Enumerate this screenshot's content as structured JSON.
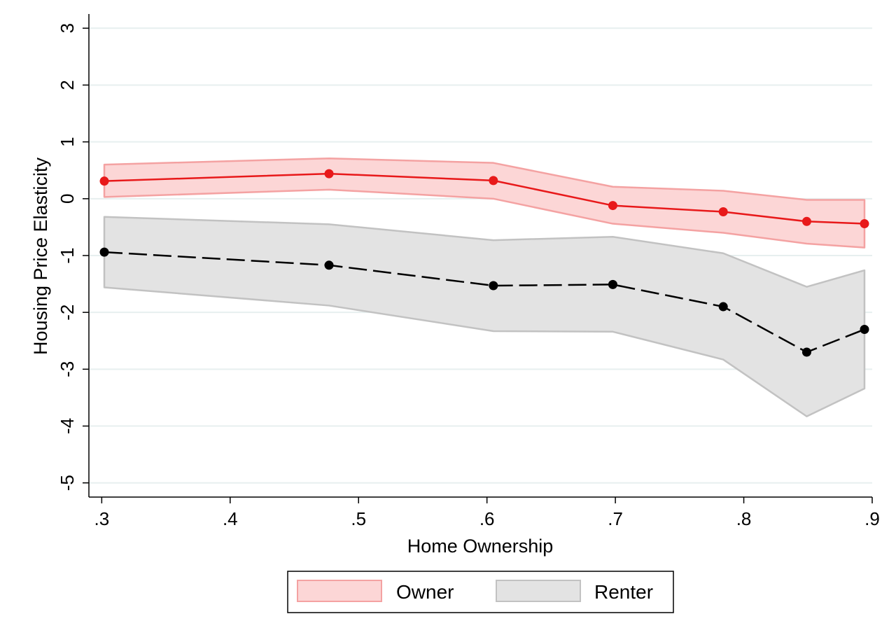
{
  "chart_data": {
    "type": "line",
    "xlabel": "Home Ownership",
    "ylabel": "Housing Price Elasticity",
    "xlim": [
      0.29,
      0.9
    ],
    "ylim": [
      -5.25,
      3.25
    ],
    "x_ticks": [
      0.3,
      0.4,
      0.5,
      0.6,
      0.7,
      0.8,
      0.9
    ],
    "x_tick_labels": [
      ".3",
      ".4",
      ".5",
      ".6",
      ".7",
      ".8",
      ".9"
    ],
    "y_ticks": [
      3,
      2,
      1,
      0,
      -1,
      -2,
      -3,
      -4,
      -5
    ],
    "y_tick_labels": [
      "3",
      "2",
      "1",
      "0",
      "-1",
      "-2",
      "-3",
      "-4",
      "-5"
    ],
    "grid": true,
    "legend": {
      "position": "bottom",
      "entries": [
        "Owner",
        "Renter"
      ]
    },
    "x": [
      0.302,
      0.477,
      0.605,
      0.698,
      0.784,
      0.849,
      0.894
    ],
    "series": [
      {
        "name": "Owner",
        "line_color": "#e8191a",
        "band_fill": "#fcd6d6",
        "band_stroke": "#f4a2a2",
        "line_style": "solid",
        "values": [
          0.31,
          0.44,
          0.32,
          -0.12,
          -0.23,
          -0.4,
          -0.44
        ],
        "ci_upper": [
          0.6,
          0.71,
          0.63,
          0.21,
          0.14,
          -0.02,
          -0.02
        ],
        "ci_lower": [
          0.03,
          0.16,
          0.0,
          -0.44,
          -0.6,
          -0.79,
          -0.86
        ]
      },
      {
        "name": "Renter",
        "line_color": "#000000",
        "band_fill": "#e3e3e3",
        "band_stroke": "#c2c2c2",
        "line_style": "dashed",
        "values": [
          -0.94,
          -1.17,
          -1.53,
          -1.51,
          -1.9,
          -2.7,
          -2.3
        ],
        "ci_upper": [
          -0.32,
          -0.45,
          -0.73,
          -0.67,
          -0.96,
          -1.55,
          -1.26
        ],
        "ci_lower": [
          -1.56,
          -1.88,
          -2.33,
          -2.34,
          -2.83,
          -3.83,
          -3.34
        ]
      }
    ]
  }
}
